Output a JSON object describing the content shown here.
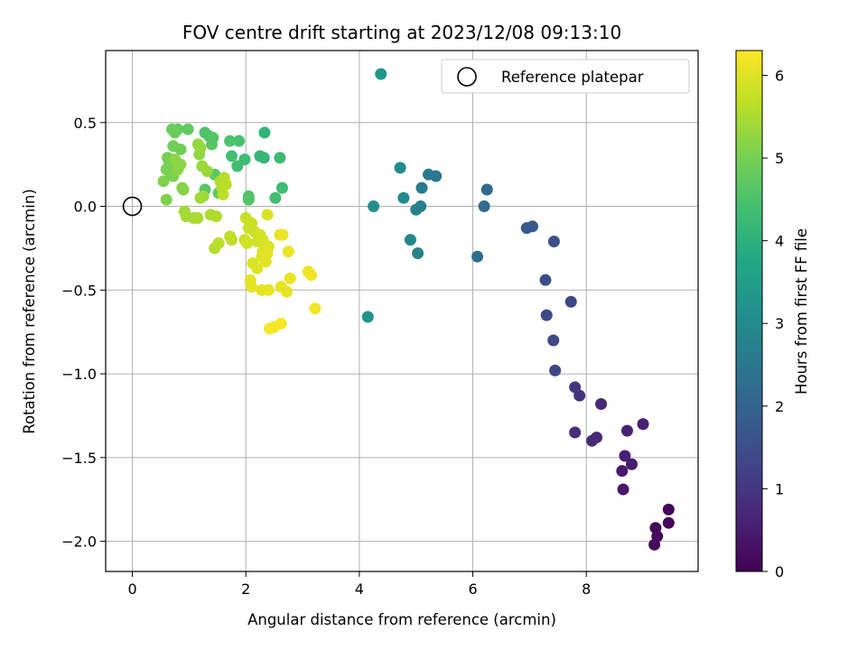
{
  "chart_data": {
    "type": "scatter",
    "title": "FOV centre drift starting at 2023/12/08 09:13:10",
    "xlabel": "Angular distance from reference (arcmin)",
    "ylabel": "Rotation from reference (arcmin)",
    "xlim": [
      -0.47,
      9.97
    ],
    "ylim": [
      -2.18,
      0.93
    ],
    "xticks": [
      0,
      2,
      4,
      6,
      8
    ],
    "yticks": [
      -2.0,
      -1.5,
      -1.0,
      -0.5,
      0.0,
      0.5
    ],
    "xtick_labels": [
      "0",
      "2",
      "4",
      "6",
      "8"
    ],
    "ytick_labels": [
      "−2.0",
      "−1.5",
      "−1.0",
      "−0.5",
      "0.0",
      "0.5"
    ],
    "grid": true,
    "legend": {
      "placement": "top-right",
      "entries": [
        "Reference platepar"
      ]
    },
    "colormap": "viridis",
    "colorbar": {
      "label": "Hours from first FF file",
      "range": [
        0,
        6.3
      ],
      "ticks": [
        0,
        1,
        2,
        3,
        4,
        5,
        6
      ],
      "tick_labels": [
        "0",
        "1",
        "2",
        "3",
        "4",
        "5",
        "6"
      ]
    },
    "reference_point": {
      "x": 0,
      "y": 0
    },
    "points": [
      {
        "x": 9.45,
        "y": -1.81,
        "c": 0.05
      },
      {
        "x": 9.45,
        "y": -1.89,
        "c": 0.08
      },
      {
        "x": 9.22,
        "y": -1.92,
        "c": 0.1
      },
      {
        "x": 9.25,
        "y": -1.97,
        "c": 0.12
      },
      {
        "x": 9.2,
        "y": -2.02,
        "c": 0.14
      },
      {
        "x": 9.0,
        "y": -1.3,
        "c": 0.55
      },
      {
        "x": 8.72,
        "y": -1.34,
        "c": 0.6
      },
      {
        "x": 8.8,
        "y": -1.54,
        "c": 0.5
      },
      {
        "x": 8.68,
        "y": -1.49,
        "c": 0.58
      },
      {
        "x": 8.63,
        "y": -1.58,
        "c": 0.45
      },
      {
        "x": 8.65,
        "y": -1.69,
        "c": 0.42
      },
      {
        "x": 8.26,
        "y": -1.18,
        "c": 0.75
      },
      {
        "x": 7.88,
        "y": -1.13,
        "c": 0.95
      },
      {
        "x": 7.8,
        "y": -1.08,
        "c": 1.0
      },
      {
        "x": 8.18,
        "y": -1.38,
        "c": 0.7
      },
      {
        "x": 8.1,
        "y": -1.4,
        "c": 0.78
      },
      {
        "x": 7.8,
        "y": -1.35,
        "c": 0.85
      },
      {
        "x": 7.45,
        "y": -0.98,
        "c": 1.3
      },
      {
        "x": 7.42,
        "y": -0.8,
        "c": 1.35
      },
      {
        "x": 7.3,
        "y": -0.65,
        "c": 1.4
      },
      {
        "x": 7.73,
        "y": -0.57,
        "c": 1.33
      },
      {
        "x": 7.28,
        "y": -0.44,
        "c": 1.5
      },
      {
        "x": 7.43,
        "y": -0.21,
        "c": 1.55
      },
      {
        "x": 7.05,
        "y": -0.12,
        "c": 1.75
      },
      {
        "x": 6.95,
        "y": -0.13,
        "c": 1.8
      },
      {
        "x": 6.25,
        "y": 0.1,
        "c": 2.15
      },
      {
        "x": 6.2,
        "y": 0.0,
        "c": 2.2
      },
      {
        "x": 6.08,
        "y": -0.3,
        "c": 2.25
      },
      {
        "x": 5.35,
        "y": 0.18,
        "c": 2.5
      },
      {
        "x": 5.22,
        "y": 0.19,
        "c": 2.55
      },
      {
        "x": 5.1,
        "y": 0.11,
        "c": 2.6
      },
      {
        "x": 5.08,
        "y": 0.0,
        "c": 2.7
      },
      {
        "x": 5.0,
        "y": -0.02,
        "c": 2.75
      },
      {
        "x": 5.03,
        "y": -0.28,
        "c": 2.8
      },
      {
        "x": 4.9,
        "y": -0.2,
        "c": 2.9
      },
      {
        "x": 4.78,
        "y": 0.05,
        "c": 3.0
      },
      {
        "x": 4.72,
        "y": 0.23,
        "c": 3.05
      },
      {
        "x": 4.25,
        "y": 0.0,
        "c": 3.1
      },
      {
        "x": 4.15,
        "y": -0.66,
        "c": 3.2
      },
      {
        "x": 4.38,
        "y": 0.79,
        "c": 3.3
      },
      {
        "x": 2.33,
        "y": 0.44,
        "c": 4.1
      },
      {
        "x": 2.25,
        "y": 0.3,
        "c": 4.2
      },
      {
        "x": 2.32,
        "y": 0.29,
        "c": 4.15
      },
      {
        "x": 2.6,
        "y": 0.29,
        "c": 4.25
      },
      {
        "x": 2.64,
        "y": 0.11,
        "c": 4.3
      },
      {
        "x": 2.52,
        "y": 0.05,
        "c": 4.35
      },
      {
        "x": 1.98,
        "y": 0.28,
        "c": 4.3
      },
      {
        "x": 1.85,
        "y": 0.24,
        "c": 4.35
      },
      {
        "x": 1.75,
        "y": 0.3,
        "c": 4.4
      },
      {
        "x": 1.88,
        "y": 0.39,
        "c": 4.45
      },
      {
        "x": 1.72,
        "y": 0.39,
        "c": 4.5
      },
      {
        "x": 2.05,
        "y": 0.06,
        "c": 4.55
      },
      {
        "x": 2.05,
        "y": 0.04,
        "c": 4.6
      },
      {
        "x": 1.28,
        "y": 0.44,
        "c": 4.5
      },
      {
        "x": 1.35,
        "y": 0.42,
        "c": 4.55
      },
      {
        "x": 1.42,
        "y": 0.41,
        "c": 4.6
      },
      {
        "x": 1.4,
        "y": 0.37,
        "c": 4.62
      },
      {
        "x": 1.28,
        "y": 0.1,
        "c": 4.65
      },
      {
        "x": 1.45,
        "y": 0.19,
        "c": 4.7
      },
      {
        "x": 1.52,
        "y": 0.08,
        "c": 4.72
      },
      {
        "x": 0.98,
        "y": 0.46,
        "c": 4.75
      },
      {
        "x": 0.8,
        "y": 0.46,
        "c": 4.8
      },
      {
        "x": 0.7,
        "y": 0.46,
        "c": 4.85
      },
      {
        "x": 0.75,
        "y": 0.44,
        "c": 4.88
      },
      {
        "x": 0.72,
        "y": 0.36,
        "c": 4.9
      },
      {
        "x": 0.85,
        "y": 0.34,
        "c": 4.92
      },
      {
        "x": 0.62,
        "y": 0.29,
        "c": 4.95
      },
      {
        "x": 0.65,
        "y": 0.25,
        "c": 4.97
      },
      {
        "x": 0.6,
        "y": 0.22,
        "c": 5.0
      },
      {
        "x": 0.68,
        "y": 0.2,
        "c": 5.02
      },
      {
        "x": 0.72,
        "y": 0.18,
        "c": 5.05
      },
      {
        "x": 0.55,
        "y": 0.15,
        "c": 5.07
      },
      {
        "x": 0.6,
        "y": 0.04,
        "c": 5.1
      },
      {
        "x": 0.88,
        "y": 0.11,
        "c": 5.12
      },
      {
        "x": 0.9,
        "y": 0.1,
        "c": 5.15
      },
      {
        "x": 0.8,
        "y": 0.22,
        "c": 5.18
      },
      {
        "x": 0.85,
        "y": 0.25,
        "c": 5.2
      },
      {
        "x": 0.75,
        "y": 0.28,
        "c": 5.22
      },
      {
        "x": 1.18,
        "y": 0.31,
        "c": 5.25
      },
      {
        "x": 1.2,
        "y": 0.35,
        "c": 5.28
      },
      {
        "x": 1.16,
        "y": 0.37,
        "c": 5.3
      },
      {
        "x": 1.32,
        "y": 0.21,
        "c": 5.32
      },
      {
        "x": 1.23,
        "y": 0.24,
        "c": 5.35
      },
      {
        "x": 1.25,
        "y": 0.06,
        "c": 5.38
      },
      {
        "x": 1.2,
        "y": 0.05,
        "c": 5.4
      },
      {
        "x": 0.92,
        "y": -0.03,
        "c": 5.42
      },
      {
        "x": 0.95,
        "y": -0.06,
        "c": 5.45
      },
      {
        "x": 1.08,
        "y": -0.07,
        "c": 5.47
      },
      {
        "x": 1.15,
        "y": -0.07,
        "c": 5.5
      },
      {
        "x": 1.38,
        "y": -0.05,
        "c": 5.52
      },
      {
        "x": 1.48,
        "y": -0.06,
        "c": 5.55
      },
      {
        "x": 1.55,
        "y": 0.15,
        "c": 5.55
      },
      {
        "x": 1.58,
        "y": 0.11,
        "c": 5.58
      },
      {
        "x": 1.62,
        "y": 0.17,
        "c": 5.6
      },
      {
        "x": 1.65,
        "y": 0.13,
        "c": 5.62
      },
      {
        "x": 1.6,
        "y": 0.07,
        "c": 5.65
      },
      {
        "x": 1.45,
        "y": -0.25,
        "c": 5.6
      },
      {
        "x": 1.52,
        "y": -0.22,
        "c": 5.62
      },
      {
        "x": 1.75,
        "y": -0.2,
        "c": 5.65
      },
      {
        "x": 1.72,
        "y": -0.18,
        "c": 5.68
      },
      {
        "x": 2.0,
        "y": -0.07,
        "c": 5.75
      },
      {
        "x": 2.1,
        "y": -0.1,
        "c": 5.78
      },
      {
        "x": 2.05,
        "y": -0.13,
        "c": 5.8
      },
      {
        "x": 2.15,
        "y": -0.15,
        "c": 5.82
      },
      {
        "x": 1.98,
        "y": -0.2,
        "c": 5.85
      },
      {
        "x": 2.02,
        "y": -0.22,
        "c": 5.87
      },
      {
        "x": 2.2,
        "y": -0.21,
        "c": 5.88
      },
      {
        "x": 2.25,
        "y": -0.17,
        "c": 5.9
      },
      {
        "x": 2.3,
        "y": -0.2,
        "c": 5.92
      },
      {
        "x": 2.38,
        "y": -0.05,
        "c": 5.94
      },
      {
        "x": 2.3,
        "y": -0.27,
        "c": 5.95
      },
      {
        "x": 2.4,
        "y": -0.24,
        "c": 5.96
      },
      {
        "x": 2.12,
        "y": -0.34,
        "c": 5.97
      },
      {
        "x": 2.2,
        "y": -0.37,
        "c": 5.98
      },
      {
        "x": 2.28,
        "y": -0.3,
        "c": 6.0
      },
      {
        "x": 2.35,
        "y": -0.33,
        "c": 6.02
      },
      {
        "x": 2.38,
        "y": -0.28,
        "c": 6.03
      },
      {
        "x": 2.08,
        "y": -0.44,
        "c": 6.04
      },
      {
        "x": 2.1,
        "y": -0.48,
        "c": 6.05
      },
      {
        "x": 2.28,
        "y": -0.5,
        "c": 6.06
      },
      {
        "x": 2.4,
        "y": -0.5,
        "c": 6.07
      },
      {
        "x": 2.62,
        "y": -0.48,
        "c": 6.08
      },
      {
        "x": 2.72,
        "y": -0.51,
        "c": 6.09
      },
      {
        "x": 2.6,
        "y": -0.17,
        "c": 6.1
      },
      {
        "x": 2.65,
        "y": -0.17,
        "c": 6.11
      },
      {
        "x": 2.75,
        "y": -0.27,
        "c": 6.12
      },
      {
        "x": 2.78,
        "y": -0.43,
        "c": 6.13
      },
      {
        "x": 3.1,
        "y": -0.39,
        "c": 6.15
      },
      {
        "x": 3.15,
        "y": -0.41,
        "c": 6.17
      },
      {
        "x": 3.22,
        "y": -0.61,
        "c": 6.2
      },
      {
        "x": 2.42,
        "y": -0.73,
        "c": 6.22
      },
      {
        "x": 2.5,
        "y": -0.72,
        "c": 6.24
      },
      {
        "x": 2.62,
        "y": -0.7,
        "c": 6.26
      }
    ]
  }
}
